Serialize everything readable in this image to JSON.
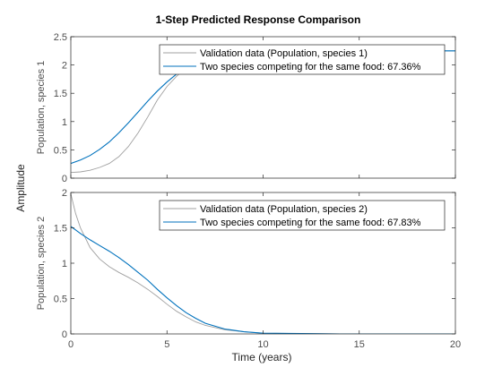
{
  "chart_data": {
    "type": "line",
    "title": "1-Step Predicted Response Comparison",
    "shared_ylabel": "Amplitude",
    "xlabel": "Time (years)",
    "xlim": [
      0,
      20
    ],
    "xticks": [
      "0",
      "5",
      "10",
      "15",
      "20"
    ],
    "axes": [
      {
        "ylabel": "Population, species 1",
        "ylim": [
          0,
          2.5
        ],
        "yticks": [
          "0",
          "0.5",
          "1",
          "1.5",
          "2",
          "2.5"
        ],
        "legend_position": "top-right",
        "series": [
          {
            "name": "Validation data (Population, species 1)",
            "color": "#a0a0a0",
            "x": [
              0,
              0.5,
              1,
              1.5,
              2,
              2.5,
              3,
              3.5,
              4,
              4.5,
              5,
              5.5,
              6,
              6.5,
              7,
              8,
              9,
              10,
              12,
              14,
              16,
              18,
              20
            ],
            "y": [
              0.1,
              0.11,
              0.14,
              0.19,
              0.26,
              0.38,
              0.56,
              0.8,
              1.08,
              1.38,
              1.62,
              1.8,
              1.95,
              2.06,
              2.13,
              2.2,
              2.23,
              2.24,
              2.25,
              2.25,
              2.25,
              2.25,
              2.25
            ]
          },
          {
            "name": "Two species competing for the same food: 67.36%",
            "color": "#0072bd",
            "x": [
              0,
              0.5,
              1,
              1.5,
              2,
              2.5,
              3,
              3.5,
              4,
              4.5,
              5,
              5.5,
              6,
              6.5,
              7,
              8,
              9,
              10,
              12,
              14,
              16,
              18,
              20
            ],
            "y": [
              0.26,
              0.32,
              0.4,
              0.51,
              0.64,
              0.8,
              0.98,
              1.17,
              1.36,
              1.54,
              1.7,
              1.84,
              1.96,
              2.05,
              2.12,
              2.2,
              2.23,
              2.24,
              2.25,
              2.25,
              2.25,
              2.25,
              2.25
            ]
          }
        ]
      },
      {
        "ylabel": "Population, species 2",
        "ylim": [
          0,
          2
        ],
        "yticks": [
          "0",
          "0.5",
          "1",
          "1.5",
          "2"
        ],
        "legend_position": "top-right",
        "series": [
          {
            "name": "Validation data (Population, species 2)",
            "color": "#a0a0a0",
            "x": [
              0,
              0.25,
              0.5,
              1,
              1.5,
              2,
              2.5,
              3,
              3.5,
              4,
              4.5,
              5,
              5.5,
              6,
              6.5,
              7,
              8,
              9,
              10,
              12,
              14,
              16,
              18,
              20
            ],
            "y": [
              1.98,
              1.7,
              1.5,
              1.22,
              1.06,
              0.95,
              0.87,
              0.8,
              0.72,
              0.63,
              0.53,
              0.42,
              0.32,
              0.24,
              0.17,
              0.12,
              0.06,
              0.03,
              0.01,
              0.005,
              0,
              0,
              0,
              0
            ]
          },
          {
            "name": "Two species competing for the same food: 67.83%",
            "color": "#0072bd",
            "x": [
              0,
              0.5,
              1,
              1.5,
              2,
              2.5,
              3,
              3.5,
              4,
              4.5,
              5,
              5.5,
              6,
              6.5,
              7,
              8,
              9,
              10,
              12,
              14,
              16,
              18,
              20
            ],
            "y": [
              1.52,
              1.42,
              1.33,
              1.25,
              1.17,
              1.08,
              0.98,
              0.87,
              0.76,
              0.63,
              0.51,
              0.4,
              0.3,
              0.22,
              0.15,
              0.07,
              0.03,
              0.01,
              0.005,
              0,
              0,
              0,
              0
            ]
          }
        ]
      }
    ]
  }
}
